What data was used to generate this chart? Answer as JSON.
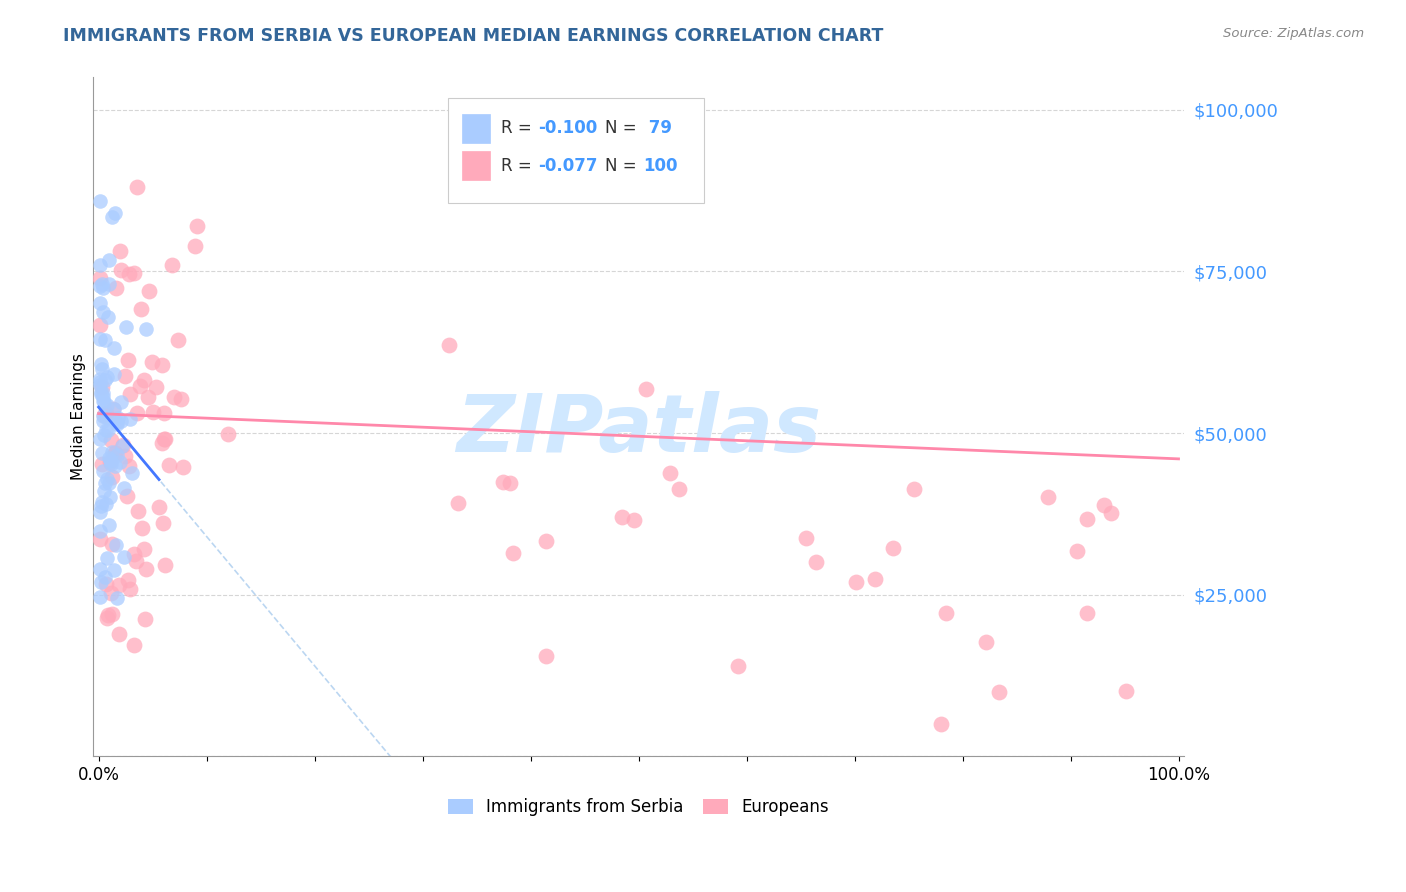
{
  "title": "IMMIGRANTS FROM SERBIA VS EUROPEAN MEDIAN EARNINGS CORRELATION CHART",
  "source": "Source: ZipAtlas.com",
  "ylabel": "Median Earnings",
  "ytick_color": "#4499ff",
  "title_color": "#336699",
  "legend_label_1": "Immigrants from Serbia",
  "legend_label_2": "Europeans",
  "serbia_color": "#aaccff",
  "european_color": "#ffaabb",
  "serbia_line_color": "#4477ff",
  "european_line_color": "#ff88aa",
  "dashed_line_color": "#aaccee",
  "watermark_color": "#d0e8ff",
  "serbia_seed": 10,
  "european_seed": 20,
  "n_serbia": 79,
  "n_european": 100,
  "ylim_low": 0,
  "ylim_high": 105000,
  "xlim_low": 0,
  "xlim_high": 1.0
}
